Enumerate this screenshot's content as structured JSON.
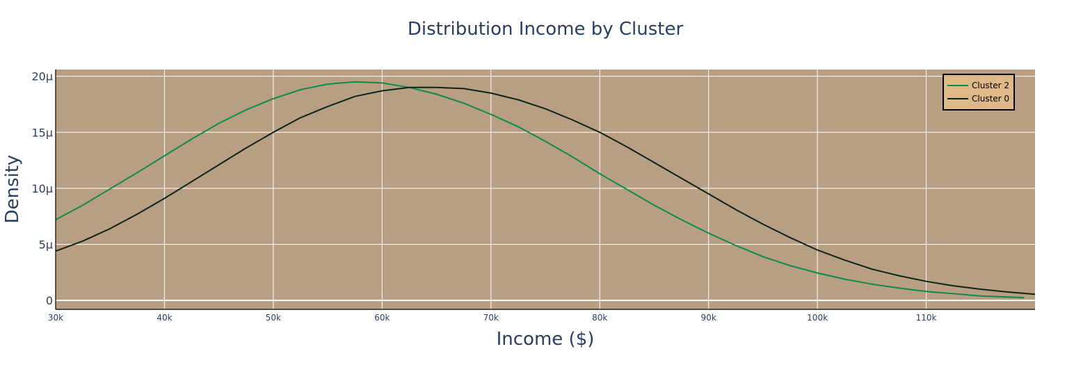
{
  "chart_data": {
    "type": "line",
    "title": "Distribution Income by Cluster",
    "xlabel": "Income ($)",
    "ylabel": "Density",
    "xlim": [
      30000,
      120000
    ],
    "ylim": [
      -8e-07,
      2.06e-05
    ],
    "x_ticks": [
      {
        "value": 30000,
        "label": "30k"
      },
      {
        "value": 40000,
        "label": "40k"
      },
      {
        "value": 50000,
        "label": "50k"
      },
      {
        "value": 60000,
        "label": "60k"
      },
      {
        "value": 70000,
        "label": "70k"
      },
      {
        "value": 80000,
        "label": "80k"
      },
      {
        "value": 90000,
        "label": "90k"
      },
      {
        "value": 100000,
        "label": "100k"
      },
      {
        "value": 110000,
        "label": "110k"
      }
    ],
    "y_ticks": [
      {
        "value": 0,
        "label": "0"
      },
      {
        "value": 5e-06,
        "label": "5μ"
      },
      {
        "value": 1e-05,
        "label": "10μ"
      },
      {
        "value": 1.5e-05,
        "label": "15μ"
      },
      {
        "value": 2e-05,
        "label": "20μ"
      }
    ],
    "grid": true,
    "legend_position": "top-right",
    "plot_background": "#b89e82",
    "legend_background": "#deb887",
    "series": [
      {
        "name": "Cluster 2",
        "color": "#0c8a4e",
        "x": [
          30000,
          32500,
          35000,
          37500,
          40000,
          42500,
          45000,
          47500,
          50000,
          52500,
          55000,
          57500,
          60000,
          62500,
          65000,
          67500,
          70000,
          72500,
          75000,
          77500,
          80000,
          82500,
          85000,
          87500,
          90000,
          92500,
          95000,
          97500,
          100000,
          102500,
          105000,
          107500,
          110000,
          112500,
          115000,
          119000
        ],
        "y": [
          7.2e-06,
          8.5e-06,
          9.95e-06,
          1.14e-05,
          1.29e-05,
          1.44e-05,
          1.58e-05,
          1.7e-05,
          1.8e-05,
          1.88e-05,
          1.93e-05,
          1.95e-05,
          1.94e-05,
          1.9e-05,
          1.84e-05,
          1.76e-05,
          1.66e-05,
          1.55e-05,
          1.42e-05,
          1.28e-05,
          1.13e-05,
          9.9e-06,
          8.5e-06,
          7.2e-06,
          6e-06,
          4.9e-06,
          3.9e-06,
          3.1e-06,
          2.45e-06,
          1.9e-06,
          1.45e-06,
          1.1e-06,
          8e-07,
          6e-07,
          4e-07,
          2.5e-07
        ]
      },
      {
        "name": "Cluster 0",
        "color": "#0b2418",
        "x": [
          30000,
          32500,
          35000,
          37500,
          40000,
          42500,
          45000,
          47500,
          50000,
          52500,
          55000,
          57500,
          60000,
          62500,
          65000,
          67500,
          70000,
          72500,
          75000,
          77500,
          80000,
          82500,
          85000,
          87500,
          90000,
          92500,
          95000,
          97500,
          100000,
          102500,
          105000,
          107500,
          110000,
          112500,
          115000,
          117500,
          120000
        ],
        "y": [
          4.4e-06,
          5.3e-06,
          6.4e-06,
          7.7e-06,
          9.1e-06,
          1.06e-05,
          1.21e-05,
          1.36e-05,
          1.5e-05,
          1.63e-05,
          1.73e-05,
          1.82e-05,
          1.87e-05,
          1.9e-05,
          1.9e-05,
          1.89e-05,
          1.85e-05,
          1.79e-05,
          1.71e-05,
          1.61e-05,
          1.5e-05,
          1.37e-05,
          1.23e-05,
          1.09e-05,
          9.5e-06,
          8.1e-06,
          6.8e-06,
          5.6e-06,
          4.5e-06,
          3.6e-06,
          2.8e-06,
          2.2e-06,
          1.7e-06,
          1.3e-06,
          1e-06,
          7.5e-07,
          5.5e-07
        ]
      }
    ]
  }
}
